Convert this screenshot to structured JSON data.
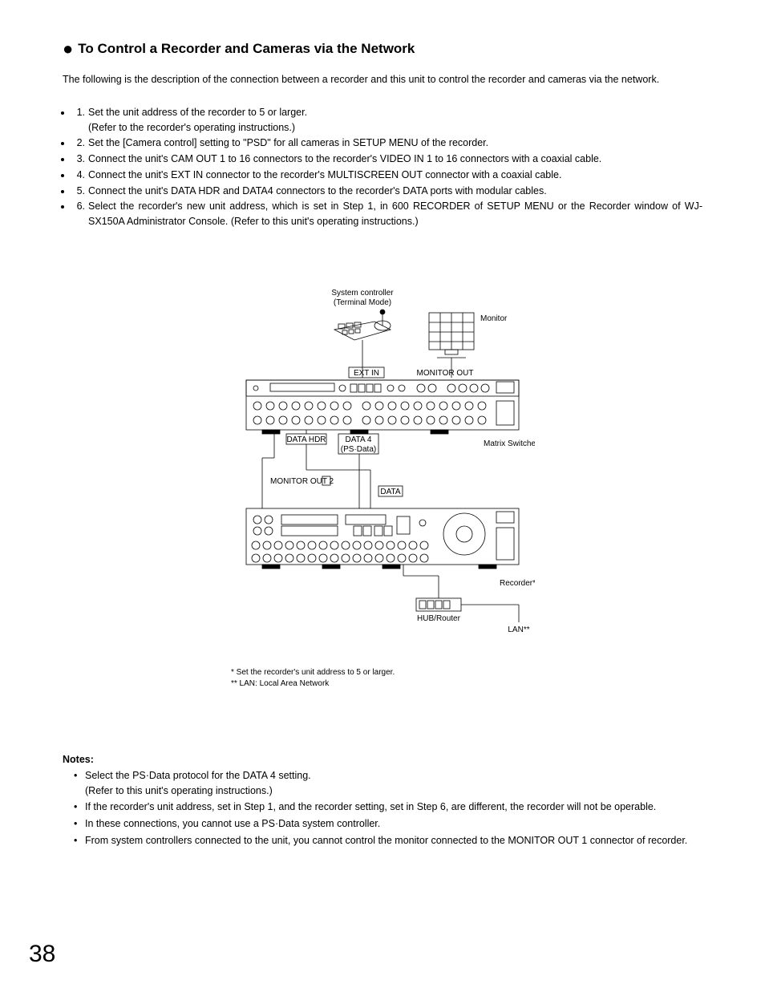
{
  "heading": "To Control a Recorder and Cameras via the Network",
  "intro": "The following is the description of the connection between a recorder and this unit to control the recorder and cameras via the network.",
  "steps": [
    "Set the unit address of the recorder to 5 or larger.\n(Refer to the recorder's operating instructions.)",
    "Set the [Camera control] setting to \"PSD\" for all cameras in SETUP MENU of the recorder.",
    "Connect the unit's CAM OUT 1 to 16 connectors to the recorder's VIDEO IN 1 to 16 connectors with a coaxial cable.",
    "Connect the unit's EXT IN connector to the recorder's MULTISCREEN OUT connector with a coaxial cable.",
    "Connect the unit's DATA HDR and DATA4 connectors to the recorder's DATA ports with modular cables.",
    "Select the recorder's new unit address, which is set in Step 1, in 600 RECORDER of SETUP MENU or the Recorder window of WJ-SX150A Administrator Console. (Refer to this unit's operating instructions.)"
  ],
  "diagram": {
    "labels": {
      "sys_ctrl1": "System controller",
      "sys_ctrl2": "(Terminal Mode)",
      "monitor": "Monitor",
      "ext_in": "EXT IN",
      "monitor_out": "MONITOR OUT",
      "data_hdr": "DATA HDR",
      "data4_a": "DATA 4",
      "data4_b": "(PS·Data)",
      "matrix_switcher": "Matrix Switcher",
      "monitor_out2": "MONITOR OUT 2",
      "data": "DATA",
      "recorder": "Recorder*",
      "hub": "HUB/Router",
      "lan": "LAN**"
    },
    "style": {
      "stroke": "#000000",
      "label_fontsize": 10,
      "small_fontsize": 8,
      "background": "#ffffff"
    }
  },
  "footnotes": [
    "* Set the recorder's unit address to 5 or larger.",
    "** LAN: Local Area Network"
  ],
  "notes_heading": "Notes:",
  "notes": [
    "Select the PS·Data protocol for the DATA 4 setting.\n(Refer to this unit's operating instructions.)",
    "If the recorder's unit address, set in Step 1, and the recorder setting, set in Step 6, are different, the recorder will not be operable.",
    "In these connections, you cannot use a PS·Data system controller.",
    "From system controllers connected to the unit, you cannot control the monitor connected to the MONITOR OUT 1 connector of recorder."
  ],
  "page_number": "38"
}
